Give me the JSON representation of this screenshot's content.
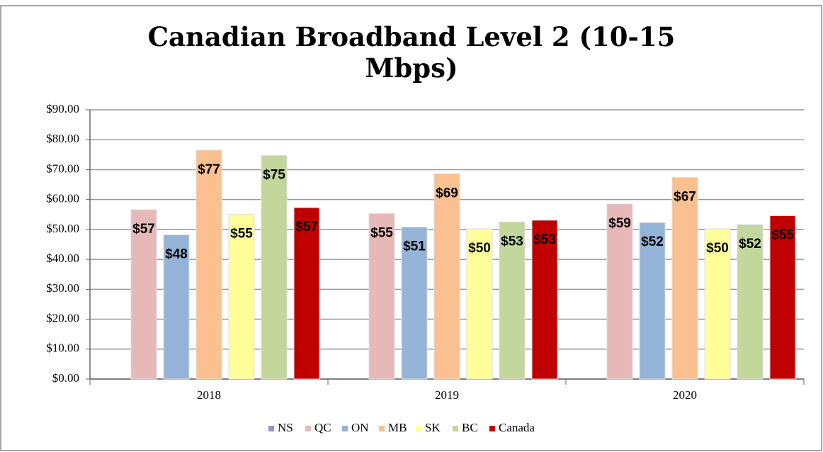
{
  "chart_data": {
    "type": "bar",
    "title": "Canadian Broadband Level 2 (10-15 Mbps)",
    "categories": [
      "2018",
      "2019",
      "2020"
    ],
    "series": [
      {
        "name": "NS",
        "color": "#9e8fc7",
        "values": [
          null,
          null,
          null
        ]
      },
      {
        "name": "QC",
        "color": "#e6b9b8",
        "values": [
          56.6,
          55.3,
          58.5
        ],
        "value_labels": [
          "$57",
          "$55",
          "$59"
        ]
      },
      {
        "name": "ON",
        "color": "#95b3d7",
        "values": [
          48.2,
          50.8,
          52.3
        ],
        "value_labels": [
          "$48",
          "$51",
          "$52"
        ]
      },
      {
        "name": "MB",
        "color": "#fac08f",
        "values": [
          76.5,
          68.6,
          67.4
        ],
        "value_labels": [
          "$77",
          "$69",
          "$67"
        ]
      },
      {
        "name": "SK",
        "color": "#ffff99",
        "values": [
          55.1,
          50.2,
          50.2
        ],
        "value_labels": [
          "$55",
          "$50",
          "$50"
        ]
      },
      {
        "name": "BC",
        "color": "#c3d69b",
        "values": [
          74.7,
          52.5,
          51.6
        ],
        "value_labels": [
          "$75",
          "$53",
          "$52"
        ]
      },
      {
        "name": "Canada",
        "color": "#c00000",
        "values": [
          57.3,
          53.1,
          54.6
        ],
        "value_labels": [
          "$57",
          "$53",
          "$55"
        ]
      }
    ],
    "ylim": [
      0,
      90
    ],
    "yticks": [
      {
        "value": 0,
        "label": "$0.00"
      },
      {
        "value": 10,
        "label": "$10.00"
      },
      {
        "value": 20,
        "label": "$20.00"
      },
      {
        "value": 30,
        "label": "$30.00"
      },
      {
        "value": 40,
        "label": "$40.00"
      },
      {
        "value": 50,
        "label": "$50.00"
      },
      {
        "value": 60,
        "label": "$60.00"
      },
      {
        "value": 70,
        "label": "$70.00"
      },
      {
        "value": 80,
        "label": "$80.00"
      },
      {
        "value": 90,
        "label": "$90.00"
      }
    ],
    "grid": true,
    "legend": "bottom"
  }
}
